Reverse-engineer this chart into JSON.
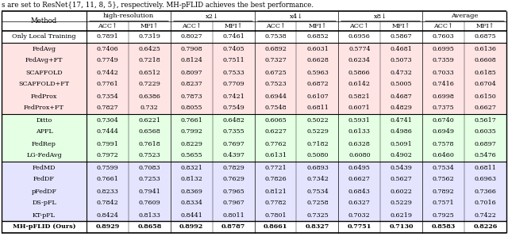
{
  "title_text": "s are set to ResNet{17, 11, 8, 5}, respectively. MH-pFLID achieves the best performance.",
  "col_groups": [
    {
      "label": "high-resolution",
      "span": 2
    },
    {
      "label": "x2↓",
      "span": 2
    },
    {
      "label": "x4↓",
      "span": 2
    },
    {
      "label": "x8↓",
      "span": 2
    },
    {
      "label": "Average",
      "span": 2
    }
  ],
  "sub_headers": [
    "ACC↑",
    "MFI↑",
    "ACC↑",
    "MFI↑",
    "ACC↑",
    "MFI↑",
    "ACC↑",
    "MFI↑",
    "ACC↑",
    "MFI↑"
  ],
  "rows": [
    {
      "method": "Only Local Training",
      "values": [
        "0.7891",
        "0.7319",
        "0.8027",
        "0.7461",
        "0.7538",
        "0.6852",
        "0.6956",
        "0.5867",
        "0.7603",
        "0.6875"
      ],
      "group": "single",
      "bold": false
    },
    {
      "method": "FedAvg",
      "values": [
        "0.7406",
        "0.6425",
        "0.7908",
        "0.7405",
        "0.6892",
        "0.6031",
        "0.5774",
        "0.4681",
        "0.6995",
        "0.6136"
      ],
      "group": "red",
      "bold": false
    },
    {
      "method": "FedAvg+FT",
      "values": [
        "0.7749",
        "0.7218",
        "0.8124",
        "0.7511",
        "0.7327",
        "0.6628",
        "0.6234",
        "0.5073",
        "0.7359",
        "0.6608"
      ],
      "group": "red",
      "bold": false
    },
    {
      "method": "SCAFFOLD",
      "values": [
        "0.7442",
        "0.6512",
        "0.8097",
        "0.7533",
        "0.6725",
        "0.5963",
        "0.5866",
        "0.4732",
        "0.7033",
        "0.6185"
      ],
      "group": "red",
      "bold": false
    },
    {
      "method": "SCAFFOLD+FT",
      "values": [
        "0.7761",
        "0.7229",
        "0.8237",
        "0.7709",
        "0.7523",
        "0.6872",
        "0.6142",
        "0.5005",
        "0.7416",
        "0.6704"
      ],
      "group": "red",
      "bold": false
    },
    {
      "method": "FedProx",
      "values": [
        "0.7354",
        "0.6386",
        "0.7873",
        "0.7421",
        "0.6944",
        "0.6107",
        "0.5821",
        "0.4687",
        "0.6998",
        "0.6150"
      ],
      "group": "red",
      "bold": false
    },
    {
      "method": "FedProx+FT",
      "values": [
        "0.7827",
        "0.732",
        "0.8055",
        "0.7549",
        "0.7548",
        "0.6811",
        "0.6071",
        "0.4829",
        "0.7375",
        "0.6627"
      ],
      "group": "red",
      "bold": false
    },
    {
      "method": "Ditto",
      "values": [
        "0.7304",
        "0.6221",
        "0.7661",
        "0.6482",
        "0.6065",
        "0.5022",
        "0.5931",
        "0.4741",
        "0.6740",
        "0.5617"
      ],
      "group": "green",
      "bold": false
    },
    {
      "method": "APFL",
      "values": [
        "0.7444",
        "0.6568",
        "0.7992",
        "0.7355",
        "0.6227",
        "0.5229",
        "0.6133",
        "0.4986",
        "0.6949",
        "0.6035"
      ],
      "group": "green",
      "bold": false
    },
    {
      "method": "FedRep",
      "values": [
        "0.7991",
        "0.7618",
        "0.8229",
        "0.7697",
        "0.7762",
        "0.7182",
        "0.6328",
        "0.5091",
        "0.7578",
        "0.6897"
      ],
      "group": "green",
      "bold": false
    },
    {
      "method": "LG-FedAvg",
      "values": [
        "0.7972",
        "0.7523",
        "0.5655",
        "0.4397",
        "0.6131",
        "0.5080",
        "0.6080",
        "0.4902",
        "0.6460",
        "0.5476"
      ],
      "group": "green",
      "bold": false
    },
    {
      "method": "FedMD",
      "values": [
        "0.7599",
        "0.7083",
        "0.8321",
        "0.7829",
        "0.7721",
        "0.6893",
        "0.6495",
        "0.5439",
        "0.7534",
        "0.6811"
      ],
      "group": "blue",
      "bold": false
    },
    {
      "method": "FedDF",
      "values": [
        "0.7661",
        "0.7253",
        "0.8132",
        "0.7629",
        "0.7826",
        "0.7342",
        "0.6627",
        "0.5627",
        "0.7562",
        "0.6963"
      ],
      "group": "blue",
      "bold": false
    },
    {
      "method": "pFedDF",
      "values": [
        "0.8233",
        "0.7941",
        "0.8369",
        "0.7965",
        "0.8121",
        "0.7534",
        "0.6843",
        "0.6022",
        "0.7892",
        "0.7366"
      ],
      "group": "blue",
      "bold": false
    },
    {
      "method": "DS-pFL",
      "values": [
        "0.7842",
        "0.7609",
        "0.8334",
        "0.7967",
        "0.7782",
        "0.7258",
        "0.6327",
        "0.5229",
        "0.7571",
        "0.7016"
      ],
      "group": "blue",
      "bold": false
    },
    {
      "method": "KT-pFL",
      "values": [
        "0.8424",
        "0.8133",
        "0.8441",
        "0.8011",
        "0.7801",
        "0.7325",
        "0.7032",
        "0.6219",
        "0.7925",
        "0.7422"
      ],
      "group": "blue",
      "bold": false
    },
    {
      "method": "MH-pFLID (Ours)",
      "values": [
        "0.8929",
        "0.8658",
        "0.8992",
        "0.8787",
        "0.8661",
        "0.8327",
        "0.7751",
        "0.7130",
        "0.8583",
        "0.8226"
      ],
      "group": "last",
      "bold": true
    }
  ],
  "bg_colors": {
    "single": "#FFFFFF",
    "red": "#FFE4E4",
    "green": "#E4FFE4",
    "blue": "#E4E4FF",
    "last": "#FFFFFF"
  }
}
